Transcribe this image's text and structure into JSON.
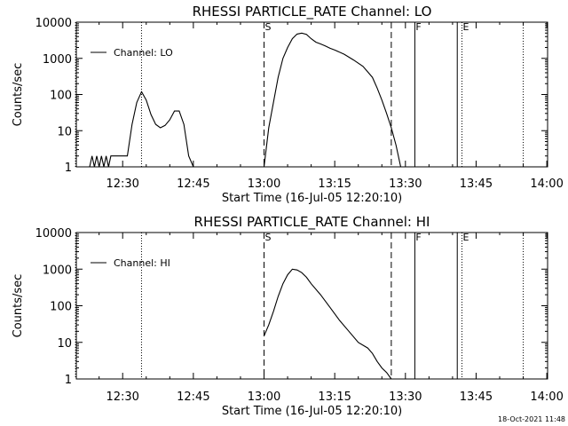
{
  "footer": {
    "timestamp": "18-Oct-2021 11:48"
  },
  "chart_data": [
    {
      "type": "line",
      "title": "RHESSI PARTICLE_RATE Channel: LO",
      "xlabel": "Start Time (16-Jul-05 12:20:10)",
      "ylabel": "Counts/sec",
      "y_scale": "log",
      "xlim_minutes_after_start": [
        0,
        100
      ],
      "ylim": [
        1,
        10000
      ],
      "x_ticks": [
        {
          "label": "12:30",
          "t": "12:30"
        },
        {
          "label": "12:45",
          "t": "12:45"
        },
        {
          "label": "13:00",
          "t": "13:00"
        },
        {
          "label": "13:15",
          "t": "13:15"
        },
        {
          "label": "13:30",
          "t": "13:30"
        },
        {
          "label": "13:45",
          "t": "13:45"
        },
        {
          "label": "14:00",
          "t": "14:00"
        }
      ],
      "y_ticks": [
        {
          "label": "1",
          "v": 1
        },
        {
          "label": "10",
          "v": 10
        },
        {
          "label": "100",
          "v": 100
        },
        {
          "label": "1000",
          "v": 1000
        },
        {
          "label": "10000",
          "v": 10000
        }
      ],
      "legend": {
        "label": "Channel: LO",
        "position": "top-left"
      },
      "markers": [
        {
          "t": "12:20",
          "style": "dotted",
          "label": ""
        },
        {
          "t": "12:34",
          "style": "dotted",
          "label": ""
        },
        {
          "t": "13:00",
          "style": "dashed",
          "label": "S"
        },
        {
          "t": "13:27",
          "style": "dashed",
          "label": ""
        },
        {
          "t": "13:32",
          "style": "solid",
          "label": "F"
        },
        {
          "t": "13:41",
          "style": "solid",
          "label": ""
        },
        {
          "t": "13:42",
          "style": "dotted",
          "label": "E"
        },
        {
          "t": "13:55",
          "style": "dotted",
          "label": ""
        }
      ],
      "series": [
        {
          "name": "Channel: LO",
          "segments": [
            {
              "x": [
                "12:23",
                "12:23.5",
                "12:24",
                "12:24.5",
                "12:25",
                "12:25.5",
                "12:26",
                "12:26.5",
                "12:27",
                "12:27.5",
                "12:28",
                "12:28.5",
                "12:29",
                "12:31",
                "12:32",
                "12:33",
                "12:34",
                "12:35",
                "12:36",
                "12:37",
                "12:38",
                "12:39",
                "12:40",
                "12:41",
                "12:42",
                "12:43",
                "12:44",
                "12:45"
              ],
              "y": [
                1,
                2,
                1,
                2,
                1,
                2,
                1,
                2,
                1,
                2,
                2,
                2,
                2,
                2,
                15,
                60,
                120,
                70,
                28,
                15,
                12,
                14,
                20,
                35,
                35,
                15,
                2,
                1
              ]
            },
            {
              "x": [
                "13:00",
                "13:01",
                "13:02",
                "13:03",
                "13:04",
                "13:05",
                "13:06",
                "13:07",
                "13:08",
                "13:09",
                "13:10",
                "13:11",
                "13:12",
                "13:13",
                "13:14",
                "13:15",
                "13:17",
                "13:19",
                "13:21",
                "13:23",
                "13:24",
                "13:25",
                "13:26",
                "13:27",
                "13:28",
                "13:29"
              ],
              "y": [
                1,
                12,
                60,
                300,
                1000,
                2000,
                3500,
                4700,
                5000,
                4600,
                3500,
                2800,
                2500,
                2200,
                1900,
                1700,
                1300,
                900,
                600,
                300,
                150,
                70,
                30,
                12,
                4,
                1
              ]
            }
          ]
        }
      ]
    },
    {
      "type": "line",
      "title": "RHESSI PARTICLE_RATE Channel: HI",
      "xlabel": "Start Time (16-Jul-05 12:20:10)",
      "ylabel": "Counts/sec",
      "y_scale": "log",
      "xlim_minutes_after_start": [
        0,
        100
      ],
      "ylim": [
        1,
        10000
      ],
      "x_ticks": [
        {
          "label": "12:30",
          "t": "12:30"
        },
        {
          "label": "12:45",
          "t": "12:45"
        },
        {
          "label": "13:00",
          "t": "13:00"
        },
        {
          "label": "13:15",
          "t": "13:15"
        },
        {
          "label": "13:30",
          "t": "13:30"
        },
        {
          "label": "13:45",
          "t": "13:45"
        },
        {
          "label": "14:00",
          "t": "14:00"
        }
      ],
      "y_ticks": [
        {
          "label": "1",
          "v": 1
        },
        {
          "label": "10",
          "v": 10
        },
        {
          "label": "100",
          "v": 100
        },
        {
          "label": "1000",
          "v": 1000
        },
        {
          "label": "10000",
          "v": 10000
        }
      ],
      "legend": {
        "label": "Channel: HI",
        "position": "top-left"
      },
      "markers": [
        {
          "t": "12:20",
          "style": "dotted",
          "label": ""
        },
        {
          "t": "12:34",
          "style": "dotted",
          "label": ""
        },
        {
          "t": "13:00",
          "style": "dashed",
          "label": "S"
        },
        {
          "t": "13:27",
          "style": "dashed",
          "label": ""
        },
        {
          "t": "13:32",
          "style": "solid",
          "label": "F"
        },
        {
          "t": "13:41",
          "style": "solid",
          "label": ""
        },
        {
          "t": "13:42",
          "style": "dotted",
          "label": "E"
        },
        {
          "t": "13:55",
          "style": "dotted",
          "label": ""
        }
      ],
      "series": [
        {
          "name": "Channel: HI",
          "segments": [
            {
              "x": [
                "13:00",
                "13:01",
                "13:02",
                "13:03",
                "13:04",
                "13:05",
                "13:06",
                "13:07",
                "13:08",
                "13:09",
                "13:10",
                "13:12",
                "13:14",
                "13:16",
                "13:18",
                "13:20",
                "13:22",
                "13:23",
                "13:24",
                "13:25",
                "13:26",
                "13:27"
              ],
              "y": [
                15,
                30,
                70,
                180,
                400,
                700,
                1000,
                950,
                800,
                600,
                400,
                200,
                90,
                40,
                20,
                10,
                7,
                5,
                3,
                2,
                1.5,
                1
              ]
            }
          ]
        }
      ]
    }
  ]
}
